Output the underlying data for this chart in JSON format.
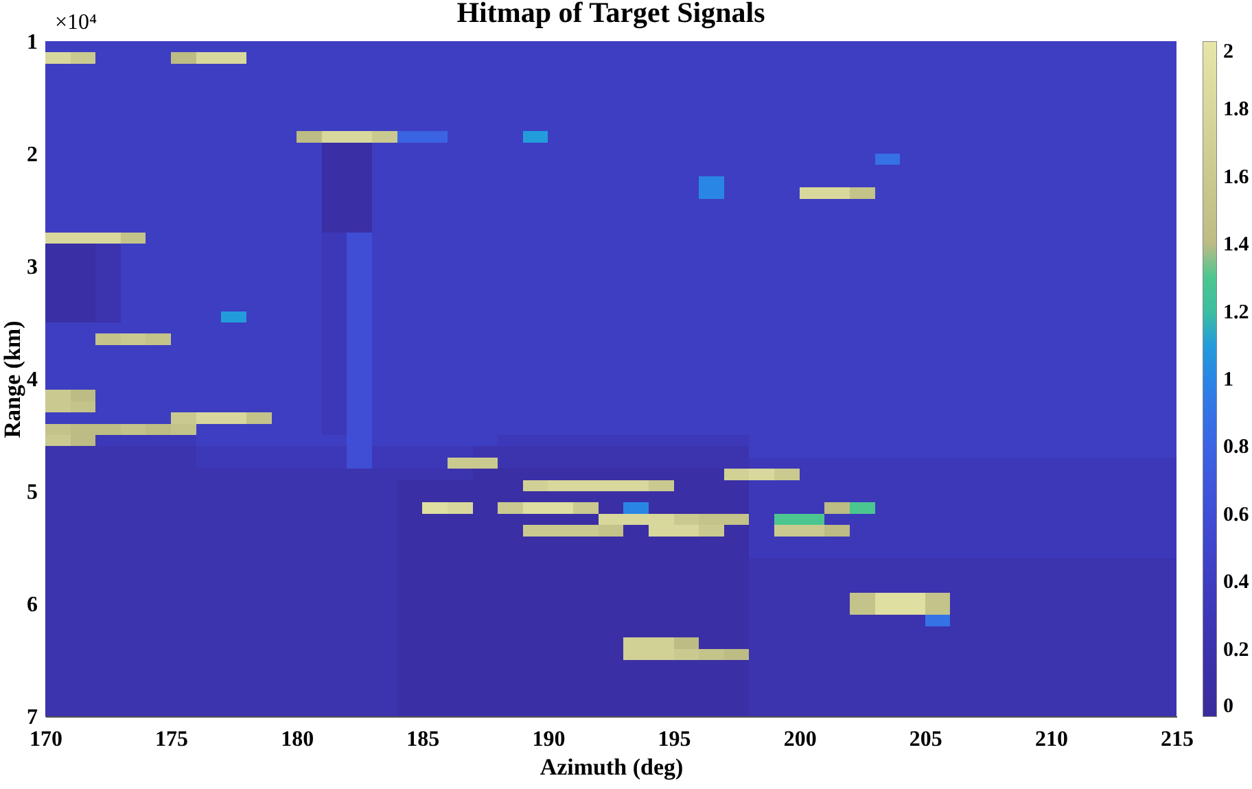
{
  "chart_data": {
    "type": "heatmap",
    "title": "Hitmap of Target Signals",
    "xlabel": "Azimuth (deg)",
    "ylabel": "Range (km)",
    "annotations": [
      "×10⁴"
    ],
    "x": [
      170.5,
      171.5,
      172.5,
      173.5,
      174.5,
      175.5,
      176.5,
      177.5,
      178.5,
      179.5,
      180.5,
      181.5,
      182.5,
      183.5,
      184.5,
      185.5,
      186.5,
      187.5,
      188.5,
      189.5,
      190.5,
      191.5,
      192.5,
      193.5,
      194.5,
      195.5,
      196.5,
      197.5,
      198.5,
      199.5,
      200.5,
      201.5,
      202.5,
      203.5,
      204.5,
      205.5,
      206.5,
      207.5,
      208.5,
      209.5,
      210.5,
      211.5,
      212.5,
      213.5,
      214.5
    ],
    "y": [
      1.05,
      1.15,
      1.25,
      1.35,
      1.45,
      1.55,
      1.65,
      1.75,
      1.85,
      1.95,
      2.05,
      2.15,
      2.25,
      2.35,
      2.45,
      2.55,
      2.65,
      2.75,
      2.85,
      2.95,
      3.05,
      3.15,
      3.25,
      3.35,
      3.45,
      3.55,
      3.65,
      3.75,
      3.85,
      3.95,
      4.05,
      4.15,
      4.25,
      4.35,
      4.45,
      4.55,
      4.65,
      4.75,
      4.85,
      4.95,
      5.05,
      5.15,
      5.25,
      5.35,
      5.45,
      5.55,
      5.65,
      5.75,
      5.85,
      5.95,
      6.05,
      6.15,
      6.25,
      6.35,
      6.45,
      6.55,
      6.65,
      6.75,
      6.85,
      6.95
    ],
    "cells": [
      [
        0.4,
        0.4,
        0.4,
        0.4,
        0.4,
        0.4,
        0.4,
        0.4,
        0.4,
        0.4,
        0.4,
        0.4,
        0.4,
        0.4,
        0.4,
        0.4,
        0.4,
        0.4,
        0.4,
        0.4,
        0.4,
        0.4,
        0.4,
        0.4,
        0.4,
        0.4,
        0.4,
        0.4,
        0.4,
        0.4,
        0.4,
        0.4,
        0.4,
        0.4,
        0.4,
        0.4,
        0.4,
        0.4,
        0.4,
        0.4,
        0.4,
        0.4,
        0.4,
        0.4,
        0.4
      ],
      [
        1.8,
        1.6,
        0.4,
        0.4,
        0.4,
        1.4,
        1.8,
        1.8,
        0.4,
        0.4,
        0.4,
        0.4,
        0.4,
        0.4,
        0.4,
        0.4,
        0.4,
        0.4,
        0.4,
        0.4,
        0.4,
        0.4,
        0.4,
        0.4,
        0.4,
        0.4,
        0.4,
        0.4,
        0.4,
        0.4,
        0.4,
        0.4,
        0.4,
        0.4,
        0.4,
        0.4,
        0.4,
        0.4,
        0.4,
        0.4,
        0.4,
        0.4,
        0.4,
        0.4,
        0.4
      ],
      [
        0.4,
        0.4,
        0.4,
        0.4,
        0.4,
        0.4,
        0.4,
        0.4,
        0.4,
        0.4,
        0.4,
        0.4,
        0.4,
        0.4,
        0.4,
        0.4,
        0.4,
        0.4,
        0.4,
        0.4,
        0.4,
        0.4,
        0.4,
        0.4,
        0.4,
        0.4,
        0.4,
        0.4,
        0.4,
        0.4,
        0.4,
        0.4,
        0.4,
        0.4,
        0.4,
        0.4,
        0.4,
        0.4,
        0.4,
        0.4,
        0.4,
        0.4,
        0.4,
        0.4,
        0.4
      ],
      [
        0.4,
        0.4,
        0.4,
        0.4,
        0.4,
        0.4,
        0.4,
        0.4,
        0.4,
        0.4,
        0.4,
        0.4,
        0.4,
        0.4,
        0.4,
        0.4,
        0.4,
        0.4,
        0.4,
        0.4,
        0.4,
        0.4,
        0.4,
        0.4,
        0.4,
        0.4,
        0.4,
        0.4,
        0.4,
        0.4,
        0.4,
        0.4,
        0.4,
        0.4,
        0.4,
        0.4,
        0.4,
        0.4,
        0.4,
        0.4,
        0.4,
        0.4,
        0.4,
        0.4,
        0.4
      ],
      [
        0.4,
        0.4,
        0.4,
        0.4,
        0.4,
        0.4,
        0.4,
        0.4,
        0.4,
        0.4,
        0.4,
        0.4,
        0.4,
        0.4,
        0.4,
        0.4,
        0.4,
        0.4,
        0.4,
        0.4,
        0.4,
        0.4,
        0.4,
        0.4,
        0.4,
        0.4,
        0.4,
        0.4,
        0.4,
        0.4,
        0.4,
        0.4,
        0.4,
        0.4,
        0.4,
        0.4,
        0.4,
        0.4,
        0.4,
        0.4,
        0.4,
        0.4,
        0.4,
        0.4,
        0.4
      ],
      [
        0.4,
        0.4,
        0.4,
        0.4,
        0.4,
        0.4,
        0.4,
        0.4,
        0.4,
        0.4,
        0.4,
        0.4,
        0.4,
        0.4,
        0.4,
        0.4,
        0.4,
        0.4,
        0.4,
        0.4,
        0.4,
        0.4,
        0.4,
        0.4,
        0.4,
        0.4,
        0.4,
        0.4,
        0.4,
        0.4,
        0.4,
        0.4,
        0.4,
        0.4,
        0.4,
        0.4,
        0.4,
        0.4,
        0.4,
        0.4,
        0.4,
        0.4,
        0.4,
        0.4,
        0.4
      ],
      [
        0.4,
        0.4,
        0.4,
        0.4,
        0.4,
        0.4,
        0.4,
        0.4,
        0.4,
        0.4,
        0.4,
        0.4,
        0.4,
        0.4,
        0.4,
        0.4,
        0.4,
        0.4,
        0.4,
        0.4,
        0.4,
        0.4,
        0.4,
        0.4,
        0.4,
        0.4,
        0.4,
        0.4,
        0.4,
        0.4,
        0.4,
        0.4,
        0.4,
        0.4,
        0.4,
        0.4,
        0.4,
        0.4,
        0.4,
        0.4,
        0.4,
        0.4,
        0.4,
        0.4,
        0.4
      ],
      [
        0.4,
        0.4,
        0.4,
        0.4,
        0.4,
        0.4,
        0.4,
        0.4,
        0.4,
        0.4,
        0.4,
        0.4,
        0.4,
        0.4,
        0.4,
        0.4,
        0.4,
        0.4,
        0.4,
        0.4,
        0.4,
        0.4,
        0.4,
        0.4,
        0.4,
        0.4,
        0.4,
        0.4,
        0.4,
        0.4,
        0.4,
        0.4,
        0.4,
        0.4,
        0.4,
        0.4,
        0.4,
        0.4,
        0.4,
        0.4,
        0.4,
        0.4,
        0.4,
        0.4,
        0.4
      ],
      [
        0.4,
        0.4,
        0.4,
        0.4,
        0.4,
        0.4,
        0.4,
        0.4,
        0.4,
        0.4,
        1.4,
        1.8,
        1.8,
        1.6,
        0.8,
        0.8,
        0.4,
        0.4,
        0.4,
        1.1,
        0.4,
        0.4,
        0.4,
        0.4,
        0.4,
        0.4,
        0.4,
        0.4,
        0.4,
        0.4,
        0.4,
        0.4,
        0.4,
        0.4,
        0.4,
        0.4,
        0.4,
        0.4,
        0.4,
        0.4,
        0.4,
        0.4,
        0.4,
        0.4,
        0.4
      ],
      [
        0.4,
        0.4,
        0.4,
        0.4,
        0.4,
        0.4,
        0.4,
        0.4,
        0.4,
        0.4,
        0.4,
        0.1,
        0.1,
        0.4,
        0.4,
        0.4,
        0.4,
        0.4,
        0.4,
        0.4,
        0.4,
        0.4,
        0.4,
        0.4,
        0.4,
        0.4,
        0.4,
        0.4,
        0.4,
        0.4,
        0.4,
        0.4,
        0.4,
        0.4,
        0.4,
        0.4,
        0.4,
        0.4,
        0.4,
        0.4,
        0.4,
        0.4,
        0.4,
        0.4,
        0.4
      ],
      [
        0.4,
        0.4,
        0.4,
        0.4,
        0.4,
        0.4,
        0.4,
        0.4,
        0.4,
        0.4,
        0.4,
        0.1,
        0.1,
        0.4,
        0.4,
        0.4,
        0.4,
        0.4,
        0.4,
        0.4,
        0.4,
        0.4,
        0.4,
        0.4,
        0.4,
        0.4,
        0.4,
        0.4,
        0.4,
        0.4,
        0.4,
        0.4,
        0.4,
        0.9,
        0.4,
        0.4,
        0.4,
        0.4,
        0.4,
        0.4,
        0.4,
        0.4,
        0.4,
        0.4,
        0.4
      ],
      [
        0.4,
        0.4,
        0.4,
        0.4,
        0.4,
        0.4,
        0.4,
        0.4,
        0.4,
        0.4,
        0.4,
        0.1,
        0.1,
        0.4,
        0.4,
        0.4,
        0.4,
        0.4,
        0.4,
        0.4,
        0.4,
        0.4,
        0.4,
        0.4,
        0.4,
        0.4,
        0.4,
        0.4,
        0.4,
        0.4,
        0.4,
        0.4,
        0.4,
        0.4,
        0.4,
        0.4,
        0.4,
        0.4,
        0.4,
        0.4,
        0.4,
        0.4,
        0.4,
        0.4,
        0.4
      ],
      [
        0.4,
        0.4,
        0.4,
        0.4,
        0.4,
        0.4,
        0.4,
        0.4,
        0.4,
        0.4,
        0.4,
        0.1,
        0.1,
        0.4,
        0.4,
        0.4,
        0.4,
        0.4,
        0.4,
        0.4,
        0.4,
        0.4,
        0.4,
        0.4,
        0.4,
        0.4,
        1.0,
        0.4,
        0.4,
        0.4,
        0.4,
        0.4,
        0.4,
        0.4,
        0.4,
        0.4,
        0.4,
        0.4,
        0.4,
        0.4,
        0.4,
        0.4,
        0.4,
        0.4,
        0.4
      ],
      [
        0.4,
        0.4,
        0.4,
        0.4,
        0.4,
        0.4,
        0.4,
        0.4,
        0.4,
        0.4,
        0.4,
        0.1,
        0.1,
        0.4,
        0.4,
        0.4,
        0.4,
        0.4,
        0.4,
        0.4,
        0.4,
        0.4,
        0.4,
        0.4,
        0.4,
        0.4,
        1.0,
        0.4,
        0.4,
        0.4,
        1.8,
        1.8,
        1.5,
        0.4,
        0.4,
        0.4,
        0.4,
        0.4,
        0.4,
        0.4,
        0.4,
        0.4,
        0.4,
        0.4,
        0.4
      ],
      [
        0.4,
        0.4,
        0.4,
        0.4,
        0.4,
        0.4,
        0.4,
        0.4,
        0.4,
        0.4,
        0.4,
        0.1,
        0.1,
        0.4,
        0.4,
        0.4,
        0.4,
        0.4,
        0.4,
        0.4,
        0.4,
        0.4,
        0.4,
        0.4,
        0.4,
        0.4,
        0.4,
        0.4,
        0.4,
        0.4,
        0.4,
        0.4,
        0.4,
        0.4,
        0.4,
        0.4,
        0.4,
        0.4,
        0.4,
        0.4,
        0.4,
        0.4,
        0.4,
        0.4,
        0.4
      ],
      [
        0.4,
        0.4,
        0.4,
        0.4,
        0.4,
        0.4,
        0.4,
        0.4,
        0.4,
        0.4,
        0.4,
        0.1,
        0.1,
        0.4,
        0.4,
        0.4,
        0.4,
        0.4,
        0.4,
        0.4,
        0.4,
        0.4,
        0.4,
        0.4,
        0.4,
        0.4,
        0.4,
        0.4,
        0.4,
        0.4,
        0.4,
        0.4,
        0.4,
        0.4,
        0.4,
        0.4,
        0.4,
        0.4,
        0.4,
        0.4,
        0.4,
        0.4,
        0.4,
        0.4,
        0.4
      ],
      [
        0.4,
        0.4,
        0.4,
        0.4,
        0.4,
        0.4,
        0.4,
        0.4,
        0.4,
        0.4,
        0.4,
        0.1,
        0.1,
        0.4,
        0.4,
        0.4,
        0.4,
        0.4,
        0.4,
        0.4,
        0.4,
        0.4,
        0.4,
        0.4,
        0.4,
        0.4,
        0.4,
        0.4,
        0.4,
        0.4,
        0.4,
        0.4,
        0.4,
        0.4,
        0.4,
        0.4,
        0.4,
        0.4,
        0.4,
        0.4,
        0.4,
        0.4,
        0.4,
        0.4,
        0.4
      ],
      [
        1.8,
        1.8,
        1.8,
        1.5,
        0.4,
        0.4,
        0.4,
        0.4,
        0.4,
        0.4,
        0.4,
        0.3,
        0.6,
        0.4,
        0.4,
        0.4,
        0.4,
        0.4,
        0.4,
        0.4,
        0.4,
        0.4,
        0.4,
        0.4,
        0.4,
        0.4,
        0.4,
        0.4,
        0.4,
        0.4,
        0.4,
        0.4,
        0.4,
        0.4,
        0.4,
        0.4,
        0.4,
        0.4,
        0.4,
        0.4,
        0.4,
        0.4,
        0.4,
        0.4,
        0.4
      ],
      [
        0.1,
        0.1,
        0.2,
        0.4,
        0.4,
        0.4,
        0.4,
        0.4,
        0.4,
        0.4,
        0.4,
        0.3,
        0.6,
        0.4,
        0.4,
        0.4,
        0.4,
        0.4,
        0.4,
        0.4,
        0.4,
        0.4,
        0.4,
        0.4,
        0.4,
        0.4,
        0.4,
        0.4,
        0.4,
        0.4,
        0.4,
        0.4,
        0.4,
        0.4,
        0.4,
        0.4,
        0.4,
        0.4,
        0.4,
        0.4,
        0.4,
        0.4,
        0.4,
        0.4,
        0.4
      ],
      [
        0.1,
        0.1,
        0.2,
        0.4,
        0.4,
        0.4,
        0.4,
        0.4,
        0.4,
        0.4,
        0.4,
        0.3,
        0.6,
        0.4,
        0.4,
        0.4,
        0.4,
        0.4,
        0.4,
        0.4,
        0.4,
        0.4,
        0.4,
        0.4,
        0.4,
        0.4,
        0.4,
        0.4,
        0.4,
        0.4,
        0.4,
        0.4,
        0.4,
        0.4,
        0.4,
        0.4,
        0.4,
        0.4,
        0.4,
        0.4,
        0.4,
        0.4,
        0.4,
        0.4,
        0.4
      ],
      [
        0.1,
        0.1,
        0.2,
        0.4,
        0.4,
        0.4,
        0.4,
        0.4,
        0.4,
        0.4,
        0.4,
        0.3,
        0.6,
        0.4,
        0.4,
        0.4,
        0.4,
        0.4,
        0.4,
        0.4,
        0.4,
        0.4,
        0.4,
        0.4,
        0.4,
        0.4,
        0.4,
        0.4,
        0.4,
        0.4,
        0.4,
        0.4,
        0.4,
        0.4,
        0.4,
        0.4,
        0.4,
        0.4,
        0.4,
        0.4,
        0.4,
        0.4,
        0.4,
        0.4,
        0.4
      ],
      [
        0.1,
        0.1,
        0.2,
        0.4,
        0.4,
        0.4,
        0.4,
        0.4,
        0.4,
        0.4,
        0.4,
        0.3,
        0.6,
        0.4,
        0.4,
        0.4,
        0.4,
        0.4,
        0.4,
        0.4,
        0.4,
        0.4,
        0.4,
        0.4,
        0.4,
        0.4,
        0.4,
        0.4,
        0.4,
        0.4,
        0.4,
        0.4,
        0.4,
        0.4,
        0.4,
        0.4,
        0.4,
        0.4,
        0.4,
        0.4,
        0.4,
        0.4,
        0.4,
        0.4,
        0.4
      ],
      [
        0.1,
        0.1,
        0.2,
        0.4,
        0.4,
        0.4,
        0.4,
        0.4,
        0.4,
        0.4,
        0.4,
        0.3,
        0.6,
        0.4,
        0.4,
        0.4,
        0.4,
        0.4,
        0.4,
        0.4,
        0.4,
        0.4,
        0.4,
        0.4,
        0.4,
        0.4,
        0.4,
        0.4,
        0.4,
        0.4,
        0.4,
        0.4,
        0.4,
        0.4,
        0.4,
        0.4,
        0.4,
        0.4,
        0.4,
        0.4,
        0.4,
        0.4,
        0.4,
        0.4,
        0.4
      ],
      [
        0.1,
        0.1,
        0.2,
        0.4,
        0.4,
        0.4,
        0.4,
        0.4,
        0.4,
        0.4,
        0.4,
        0.3,
        0.6,
        0.4,
        0.4,
        0.4,
        0.4,
        0.4,
        0.4,
        0.4,
        0.4,
        0.4,
        0.4,
        0.4,
        0.4,
        0.4,
        0.4,
        0.4,
        0.4,
        0.4,
        0.4,
        0.4,
        0.4,
        0.4,
        0.4,
        0.4,
        0.4,
        0.4,
        0.4,
        0.4,
        0.4,
        0.4,
        0.4,
        0.4,
        0.4
      ],
      [
        0.1,
        0.1,
        0.2,
        0.4,
        0.4,
        0.4,
        0.4,
        1.1,
        0.4,
        0.4,
        0.4,
        0.3,
        0.6,
        0.4,
        0.4,
        0.4,
        0.4,
        0.4,
        0.4,
        0.4,
        0.4,
        0.4,
        0.4,
        0.4,
        0.4,
        0.4,
        0.4,
        0.4,
        0.4,
        0.4,
        0.4,
        0.4,
        0.4,
        0.4,
        0.4,
        0.4,
        0.4,
        0.4,
        0.4,
        0.4,
        0.4,
        0.4,
        0.4,
        0.4,
        0.4
      ],
      [
        0.4,
        0.4,
        0.4,
        0.4,
        0.4,
        0.4,
        0.4,
        0.4,
        0.4,
        0.4,
        0.4,
        0.3,
        0.6,
        0.4,
        0.4,
        0.4,
        0.4,
        0.4,
        0.4,
        0.4,
        0.4,
        0.4,
        0.4,
        0.4,
        0.4,
        0.4,
        0.4,
        0.4,
        0.4,
        0.4,
        0.4,
        0.4,
        0.4,
        0.4,
        0.4,
        0.4,
        0.4,
        0.4,
        0.4,
        0.4,
        0.4,
        0.4,
        0.4,
        0.4,
        0.4
      ],
      [
        0.4,
        0.4,
        1.5,
        1.6,
        1.5,
        0.4,
        0.4,
        0.4,
        0.4,
        0.4,
        0.4,
        0.3,
        0.6,
        0.4,
        0.4,
        0.4,
        0.4,
        0.4,
        0.4,
        0.4,
        0.4,
        0.4,
        0.4,
        0.4,
        0.4,
        0.4,
        0.4,
        0.4,
        0.4,
        0.4,
        0.4,
        0.4,
        0.4,
        0.4,
        0.4,
        0.4,
        0.4,
        0.4,
        0.4,
        0.4,
        0.4,
        0.4,
        0.4,
        0.4,
        0.4
      ],
      [
        0.4,
        0.4,
        0.4,
        0.4,
        0.4,
        0.4,
        0.4,
        0.4,
        0.4,
        0.4,
        0.4,
        0.3,
        0.6,
        0.4,
        0.4,
        0.4,
        0.4,
        0.4,
        0.4,
        0.4,
        0.4,
        0.4,
        0.4,
        0.4,
        0.4,
        0.4,
        0.4,
        0.4,
        0.4,
        0.4,
        0.4,
        0.4,
        0.4,
        0.4,
        0.4,
        0.4,
        0.4,
        0.4,
        0.4,
        0.4,
        0.4,
        0.4,
        0.4,
        0.4,
        0.4
      ],
      [
        0.4,
        0.4,
        0.4,
        0.4,
        0.4,
        0.4,
        0.4,
        0.4,
        0.4,
        0.4,
        0.4,
        0.3,
        0.6,
        0.4,
        0.4,
        0.4,
        0.4,
        0.4,
        0.4,
        0.4,
        0.4,
        0.4,
        0.4,
        0.4,
        0.4,
        0.4,
        0.4,
        0.4,
        0.4,
        0.4,
        0.4,
        0.4,
        0.4,
        0.4,
        0.4,
        0.4,
        0.4,
        0.4,
        0.4,
        0.4,
        0.4,
        0.4,
        0.4,
        0.4,
        0.4
      ],
      [
        0.4,
        0.4,
        0.4,
        0.4,
        0.4,
        0.4,
        0.4,
        0.4,
        0.4,
        0.4,
        0.4,
        0.3,
        0.6,
        0.4,
        0.4,
        0.4,
        0.4,
        0.4,
        0.4,
        0.4,
        0.4,
        0.4,
        0.4,
        0.4,
        0.4,
        0.4,
        0.4,
        0.4,
        0.4,
        0.4,
        0.4,
        0.4,
        0.4,
        0.4,
        0.4,
        0.4,
        0.4,
        0.4,
        0.4,
        0.4,
        0.4,
        0.4,
        0.4,
        0.4,
        0.4
      ],
      [
        0.4,
        0.4,
        0.4,
        0.4,
        0.4,
        0.4,
        0.4,
        0.4,
        0.4,
        0.4,
        0.4,
        0.3,
        0.6,
        0.4,
        0.4,
        0.4,
        0.4,
        0.4,
        0.4,
        0.4,
        0.4,
        0.4,
        0.4,
        0.4,
        0.4,
        0.4,
        0.4,
        0.4,
        0.4,
        0.4,
        0.4,
        0.4,
        0.4,
        0.4,
        0.4,
        0.4,
        0.4,
        0.4,
        0.4,
        0.4,
        0.4,
        0.4,
        0.4,
        0.4,
        0.4
      ],
      [
        1.6,
        1.4,
        0.4,
        0.4,
        0.4,
        0.4,
        0.4,
        0.4,
        0.4,
        0.4,
        0.4,
        0.3,
        0.6,
        0.4,
        0.4,
        0.4,
        0.4,
        0.4,
        0.4,
        0.4,
        0.4,
        0.4,
        0.4,
        0.4,
        0.4,
        0.4,
        0.4,
        0.4,
        0.4,
        0.4,
        0.4,
        0.4,
        0.4,
        0.4,
        0.4,
        0.4,
        0.4,
        0.4,
        0.4,
        0.4,
        0.4,
        0.4,
        0.4,
        0.4,
        0.4
      ],
      [
        1.6,
        1.5,
        0.4,
        0.4,
        0.4,
        0.4,
        0.4,
        0.4,
        0.4,
        0.4,
        0.4,
        0.3,
        0.6,
        0.4,
        0.4,
        0.4,
        0.4,
        0.4,
        0.4,
        0.4,
        0.4,
        0.4,
        0.4,
        0.4,
        0.4,
        0.4,
        0.4,
        0.4,
        0.4,
        0.4,
        0.4,
        0.4,
        0.4,
        0.4,
        0.4,
        0.4,
        0.4,
        0.4,
        0.4,
        0.4,
        0.4,
        0.4,
        0.4,
        0.4,
        0.4
      ],
      [
        0.4,
        0.4,
        0.4,
        0.4,
        0.4,
        1.6,
        1.8,
        1.8,
        1.5,
        0.4,
        0.4,
        0.3,
        0.6,
        0.4,
        0.4,
        0.4,
        0.4,
        0.4,
        0.4,
        0.4,
        0.4,
        0.4,
        0.4,
        0.4,
        0.4,
        0.4,
        0.4,
        0.4,
        0.4,
        0.4,
        0.4,
        0.4,
        0.4,
        0.4,
        0.4,
        0.4,
        0.4,
        0.4,
        0.4,
        0.4,
        0.4,
        0.4,
        0.4,
        0.4,
        0.4
      ],
      [
        1.5,
        1.4,
        1.4,
        1.5,
        1.4,
        1.5,
        0.4,
        0.4,
        0.4,
        0.4,
        0.4,
        0.3,
        0.6,
        0.4,
        0.4,
        0.4,
        0.4,
        0.4,
        0.4,
        0.4,
        0.4,
        0.4,
        0.4,
        0.4,
        0.4,
        0.4,
        0.4,
        0.4,
        0.4,
        0.4,
        0.4,
        0.4,
        0.4,
        0.4,
        0.4,
        0.4,
        0.4,
        0.4,
        0.4,
        0.4,
        0.4,
        0.4,
        0.4,
        0.4,
        0.4
      ],
      [
        1.6,
        1.4,
        0.3,
        0.3,
        0.3,
        0.3,
        0.4,
        0.4,
        0.4,
        0.4,
        0.4,
        0.4,
        0.6,
        0.4,
        0.4,
        0.4,
        0.4,
        0.4,
        0.3,
        0.3,
        0.3,
        0.3,
        0.3,
        0.3,
        0.3,
        0.3,
        0.3,
        0.3,
        0.4,
        0.4,
        0.4,
        0.4,
        0.4,
        0.4,
        0.4,
        0.4,
        0.4,
        0.4,
        0.4,
        0.4,
        0.4,
        0.4,
        0.4,
        0.4,
        0.4
      ],
      [
        0.2,
        0.2,
        0.2,
        0.2,
        0.2,
        0.2,
        0.3,
        0.3,
        0.3,
        0.3,
        0.3,
        0.3,
        0.6,
        0.3,
        0.3,
        0.3,
        0.3,
        0.2,
        0.2,
        0.2,
        0.2,
        0.2,
        0.2,
        0.2,
        0.2,
        0.2,
        0.2,
        0.2,
        0.4,
        0.4,
        0.4,
        0.4,
        0.4,
        0.4,
        0.4,
        0.4,
        0.4,
        0.4,
        0.4,
        0.4,
        0.4,
        0.4,
        0.4,
        0.4,
        0.4
      ],
      [
        0.2,
        0.2,
        0.2,
        0.2,
        0.2,
        0.2,
        0.3,
        0.3,
        0.3,
        0.3,
        0.3,
        0.3,
        0.6,
        0.3,
        0.3,
        0.3,
        1.6,
        1.6,
        0.2,
        0.2,
        0.2,
        0.2,
        0.2,
        0.2,
        0.2,
        0.2,
        0.2,
        0.2,
        0.3,
        0.3,
        0.3,
        0.3,
        0.3,
        0.3,
        0.3,
        0.3,
        0.3,
        0.3,
        0.3,
        0.3,
        0.3,
        0.3,
        0.3,
        0.3,
        0.3
      ],
      [
        0.2,
        0.2,
        0.2,
        0.2,
        0.2,
        0.2,
        0.2,
        0.2,
        0.2,
        0.2,
        0.2,
        0.2,
        0.2,
        0.2,
        0.2,
        0.2,
        0.2,
        0.1,
        0.1,
        0.1,
        0.1,
        0.1,
        0.1,
        0.1,
        0.1,
        0.1,
        0.1,
        1.7,
        1.8,
        1.6,
        0.3,
        0.3,
        0.3,
        0.3,
        0.3,
        0.3,
        0.3,
        0.3,
        0.3,
        0.3,
        0.3,
        0.3,
        0.3,
        0.3,
        0.3
      ],
      [
        0.2,
        0.2,
        0.2,
        0.2,
        0.2,
        0.2,
        0.2,
        0.2,
        0.2,
        0.2,
        0.2,
        0.2,
        0.2,
        0.2,
        0.1,
        0.1,
        0.1,
        0.1,
        0.1,
        1.7,
        1.8,
        1.8,
        1.8,
        1.8,
        1.6,
        0.1,
        0.1,
        0.1,
        0.3,
        0.3,
        0.3,
        0.3,
        0.3,
        0.3,
        0.3,
        0.3,
        0.3,
        0.3,
        0.3,
        0.3,
        0.3,
        0.3,
        0.3,
        0.3,
        0.3
      ],
      [
        0.2,
        0.2,
        0.2,
        0.2,
        0.2,
        0.2,
        0.2,
        0.2,
        0.2,
        0.2,
        0.2,
        0.2,
        0.2,
        0.2,
        0.1,
        0.1,
        0.1,
        0.1,
        0.1,
        0.1,
        0.1,
        0.1,
        0.1,
        0.1,
        0.1,
        0.1,
        0.1,
        0.1,
        0.3,
        0.3,
        0.3,
        0.3,
        0.3,
        0.3,
        0.3,
        0.3,
        0.3,
        0.3,
        0.3,
        0.3,
        0.3,
        0.3,
        0.3,
        0.3,
        0.3
      ],
      [
        0.2,
        0.2,
        0.2,
        0.2,
        0.2,
        0.2,
        0.2,
        0.2,
        0.2,
        0.2,
        0.2,
        0.2,
        0.2,
        0.2,
        0.1,
        1.9,
        1.8,
        0.1,
        1.6,
        1.9,
        1.9,
        1.6,
        0.1,
        1.0,
        0.1,
        0.1,
        0.1,
        0.1,
        0.3,
        0.3,
        0.3,
        1.4,
        1.3,
        0.3,
        0.3,
        0.3,
        0.3,
        0.3,
        0.3,
        0.3,
        0.3,
        0.3,
        0.3,
        0.3,
        0.3
      ],
      [
        0.2,
        0.2,
        0.2,
        0.2,
        0.2,
        0.2,
        0.2,
        0.2,
        0.2,
        0.2,
        0.2,
        0.2,
        0.2,
        0.2,
        0.1,
        0.1,
        0.1,
        0.1,
        0.1,
        0.1,
        0.1,
        0.1,
        1.8,
        1.8,
        1.8,
        1.6,
        1.5,
        1.5,
        0.3,
        1.3,
        1.3,
        0.3,
        0.3,
        0.3,
        0.3,
        0.3,
        0.3,
        0.3,
        0.3,
        0.3,
        0.3,
        0.3,
        0.3,
        0.3,
        0.3
      ],
      [
        0.2,
        0.2,
        0.2,
        0.2,
        0.2,
        0.2,
        0.2,
        0.2,
        0.2,
        0.2,
        0.2,
        0.2,
        0.2,
        0.2,
        0.1,
        0.1,
        0.1,
        0.1,
        0.1,
        1.6,
        1.6,
        1.6,
        1.5,
        0.1,
        1.8,
        1.8,
        1.6,
        0.1,
        0.3,
        1.6,
        1.6,
        1.4,
        0.3,
        0.3,
        0.3,
        0.3,
        0.3,
        0.3,
        0.3,
        0.3,
        0.3,
        0.3,
        0.3,
        0.3,
        0.3
      ],
      [
        0.2,
        0.2,
        0.2,
        0.2,
        0.2,
        0.2,
        0.2,
        0.2,
        0.2,
        0.2,
        0.2,
        0.2,
        0.2,
        0.2,
        0.1,
        0.1,
        0.1,
        0.1,
        0.1,
        0.1,
        0.1,
        0.1,
        0.1,
        0.1,
        0.1,
        0.1,
        0.1,
        0.1,
        0.3,
        0.3,
        0.3,
        0.3,
        0.3,
        0.3,
        0.3,
        0.3,
        0.3,
        0.3,
        0.3,
        0.3,
        0.3,
        0.3,
        0.3,
        0.3,
        0.3
      ],
      [
        0.2,
        0.2,
        0.2,
        0.2,
        0.2,
        0.2,
        0.2,
        0.2,
        0.2,
        0.2,
        0.2,
        0.2,
        0.2,
        0.2,
        0.1,
        0.1,
        0.1,
        0.1,
        0.1,
        0.1,
        0.1,
        0.1,
        0.1,
        0.1,
        0.1,
        0.1,
        0.1,
        0.1,
        0.3,
        0.3,
        0.3,
        0.3,
        0.3,
        0.3,
        0.3,
        0.3,
        0.3,
        0.3,
        0.3,
        0.3,
        0.3,
        0.3,
        0.3,
        0.3,
        0.3
      ],
      [
        0.2,
        0.2,
        0.2,
        0.2,
        0.2,
        0.2,
        0.2,
        0.2,
        0.2,
        0.2,
        0.2,
        0.2,
        0.2,
        0.2,
        0.1,
        0.1,
        0.1,
        0.1,
        0.1,
        0.1,
        0.1,
        0.1,
        0.1,
        0.1,
        0.1,
        0.1,
        0.1,
        0.1,
        0.2,
        0.2,
        0.2,
        0.2,
        0.2,
        0.2,
        0.2,
        0.2,
        0.2,
        0.2,
        0.2,
        0.2,
        0.2,
        0.2,
        0.2,
        0.2,
        0.2
      ],
      [
        0.2,
        0.2,
        0.2,
        0.2,
        0.2,
        0.2,
        0.2,
        0.2,
        0.2,
        0.2,
        0.2,
        0.2,
        0.2,
        0.2,
        0.1,
        0.1,
        0.1,
        0.1,
        0.1,
        0.1,
        0.1,
        0.1,
        0.1,
        0.1,
        0.1,
        0.1,
        0.1,
        0.1,
        0.2,
        0.2,
        0.2,
        0.2,
        0.2,
        0.2,
        0.2,
        0.2,
        0.2,
        0.2,
        0.2,
        0.2,
        0.2,
        0.2,
        0.2,
        0.2,
        0.2
      ],
      [
        0.2,
        0.2,
        0.2,
        0.2,
        0.2,
        0.2,
        0.2,
        0.2,
        0.2,
        0.2,
        0.2,
        0.2,
        0.2,
        0.2,
        0.1,
        0.1,
        0.1,
        0.1,
        0.1,
        0.1,
        0.1,
        0.1,
        0.1,
        0.1,
        0.1,
        0.1,
        0.1,
        0.1,
        0.2,
        0.2,
        0.2,
        0.2,
        0.2,
        0.2,
        0.2,
        0.2,
        0.2,
        0.2,
        0.2,
        0.2,
        0.2,
        0.2,
        0.2,
        0.2,
        0.2
      ],
      [
        0.2,
        0.2,
        0.2,
        0.2,
        0.2,
        0.2,
        0.2,
        0.2,
        0.2,
        0.2,
        0.2,
        0.2,
        0.2,
        0.2,
        0.1,
        0.1,
        0.1,
        0.1,
        0.1,
        0.1,
        0.1,
        0.1,
        0.1,
        0.1,
        0.1,
        0.1,
        0.1,
        0.1,
        0.2,
        0.2,
        0.2,
        0.2,
        1.5,
        1.9,
        1.9,
        1.5,
        0.2,
        0.2,
        0.2,
        0.2,
        0.2,
        0.2,
        0.2,
        0.2,
        0.2
      ],
      [
        0.2,
        0.2,
        0.2,
        0.2,
        0.2,
        0.2,
        0.2,
        0.2,
        0.2,
        0.2,
        0.2,
        0.2,
        0.2,
        0.2,
        0.1,
        0.1,
        0.1,
        0.1,
        0.1,
        0.1,
        0.1,
        0.1,
        0.1,
        0.1,
        0.1,
        0.1,
        0.1,
        0.1,
        0.2,
        0.2,
        0.2,
        0.2,
        1.5,
        1.9,
        1.9,
        1.5,
        0.2,
        0.2,
        0.2,
        0.2,
        0.2,
        0.2,
        0.2,
        0.2,
        0.2
      ],
      [
        0.2,
        0.2,
        0.2,
        0.2,
        0.2,
        0.2,
        0.2,
        0.2,
        0.2,
        0.2,
        0.2,
        0.2,
        0.2,
        0.2,
        0.1,
        0.1,
        0.1,
        0.1,
        0.1,
        0.1,
        0.1,
        0.1,
        0.1,
        0.1,
        0.1,
        0.1,
        0.1,
        0.1,
        0.2,
        0.2,
        0.2,
        0.2,
        0.2,
        0.2,
        0.2,
        0.9,
        0.2,
        0.2,
        0.2,
        0.2,
        0.2,
        0.2,
        0.2,
        0.2,
        0.2
      ],
      [
        0.2,
        0.2,
        0.2,
        0.2,
        0.2,
        0.2,
        0.2,
        0.2,
        0.2,
        0.2,
        0.2,
        0.2,
        0.2,
        0.2,
        0.1,
        0.1,
        0.1,
        0.1,
        0.1,
        0.1,
        0.1,
        0.1,
        0.1,
        0.1,
        0.1,
        0.1,
        0.1,
        0.1,
        0.2,
        0.2,
        0.2,
        0.2,
        0.2,
        0.2,
        0.2,
        0.2,
        0.2,
        0.2,
        0.2,
        0.2,
        0.2,
        0.2,
        0.2,
        0.2,
        0.2
      ],
      [
        0.2,
        0.2,
        0.2,
        0.2,
        0.2,
        0.2,
        0.2,
        0.2,
        0.2,
        0.2,
        0.2,
        0.2,
        0.2,
        0.2,
        0.1,
        0.1,
        0.1,
        0.1,
        0.1,
        0.1,
        0.1,
        0.1,
        0.1,
        1.7,
        1.7,
        1.4,
        0.1,
        0.1,
        0.2,
        0.2,
        0.2,
        0.2,
        0.2,
        0.2,
        0.2,
        0.2,
        0.2,
        0.2,
        0.2,
        0.2,
        0.2,
        0.2,
        0.2,
        0.2,
        0.2
      ],
      [
        0.2,
        0.2,
        0.2,
        0.2,
        0.2,
        0.2,
        0.2,
        0.2,
        0.2,
        0.2,
        0.2,
        0.2,
        0.2,
        0.2,
        0.1,
        0.1,
        0.1,
        0.1,
        0.1,
        0.1,
        0.1,
        0.1,
        0.1,
        1.7,
        1.7,
        1.6,
        1.5,
        1.4,
        0.2,
        0.2,
        0.2,
        0.2,
        0.2,
        0.2,
        0.2,
        0.2,
        0.2,
        0.2,
        0.2,
        0.2,
        0.2,
        0.2,
        0.2,
        0.2,
        0.2
      ],
      [
        0.2,
        0.2,
        0.2,
        0.2,
        0.2,
        0.2,
        0.2,
        0.2,
        0.2,
        0.2,
        0.2,
        0.2,
        0.2,
        0.2,
        0.1,
        0.1,
        0.1,
        0.1,
        0.1,
        0.1,
        0.1,
        0.1,
        0.1,
        0.1,
        0.1,
        0.1,
        0.1,
        0.1,
        0.2,
        0.2,
        0.2,
        0.2,
        0.2,
        0.2,
        0.2,
        0.2,
        0.2,
        0.2,
        0.2,
        0.2,
        0.2,
        0.2,
        0.2,
        0.2,
        0.2
      ],
      [
        0.2,
        0.2,
        0.2,
        0.2,
        0.2,
        0.2,
        0.2,
        0.2,
        0.2,
        0.2,
        0.2,
        0.2,
        0.2,
        0.2,
        0.1,
        0.1,
        0.1,
        0.1,
        0.1,
        0.1,
        0.1,
        0.1,
        0.1,
        0.1,
        0.1,
        0.1,
        0.1,
        0.1,
        0.2,
        0.2,
        0.2,
        0.2,
        0.2,
        0.2,
        0.2,
        0.2,
        0.2,
        0.2,
        0.2,
        0.2,
        0.2,
        0.2,
        0.2,
        0.2,
        0.2
      ],
      [
        0.2,
        0.2,
        0.2,
        0.2,
        0.2,
        0.2,
        0.2,
        0.2,
        0.2,
        0.2,
        0.2,
        0.2,
        0.2,
        0.2,
        0.1,
        0.1,
        0.1,
        0.1,
        0.1,
        0.1,
        0.1,
        0.1,
        0.1,
        0.1,
        0.1,
        0.1,
        0.1,
        0.1,
        0.2,
        0.2,
        0.2,
        0.2,
        0.2,
        0.2,
        0.2,
        0.2,
        0.2,
        0.2,
        0.2,
        0.2,
        0.2,
        0.2,
        0.2,
        0.2,
        0.2
      ],
      [
        0.2,
        0.2,
        0.2,
        0.2,
        0.2,
        0.2,
        0.2,
        0.2,
        0.2,
        0.2,
        0.2,
        0.2,
        0.2,
        0.2,
        0.1,
        0.1,
        0.1,
        0.1,
        0.1,
        0.1,
        0.1,
        0.1,
        0.1,
        0.1,
        0.1,
        0.1,
        0.1,
        0.1,
        0.2,
        0.2,
        0.2,
        0.2,
        0.2,
        0.2,
        0.2,
        0.2,
        0.2,
        0.2,
        0.2,
        0.2,
        0.2,
        0.2,
        0.2,
        0.2,
        0.2
      ],
      [
        0.2,
        0.2,
        0.2,
        0.2,
        0.2,
        0.2,
        0.2,
        0.2,
        0.2,
        0.2,
        0.2,
        0.2,
        0.2,
        0.2,
        0.1,
        0.1,
        0.1,
        0.1,
        0.1,
        0.1,
        0.1,
        0.1,
        0.1,
        0.1,
        0.1,
        0.1,
        0.1,
        0.1,
        0.2,
        0.2,
        0.2,
        0.2,
        0.2,
        0.2,
        0.2,
        0.2,
        0.2,
        0.2,
        0.2,
        0.2,
        0.2,
        0.2,
        0.2,
        0.2,
        0.2
      ]
    ],
    "xlim": [
      170,
      215
    ],
    "xticks": [
      170,
      175,
      180,
      185,
      190,
      195,
      200,
      205,
      210,
      215
    ],
    "ylim": [
      7,
      1
    ],
    "yticks": [
      1,
      2,
      3,
      4,
      5,
      6,
      7
    ],
    "clim": [
      0,
      2
    ],
    "cticks": [
      0,
      0.2,
      0.4,
      0.6,
      0.8,
      1,
      1.2,
      1.4,
      1.6,
      1.8,
      2
    ]
  }
}
